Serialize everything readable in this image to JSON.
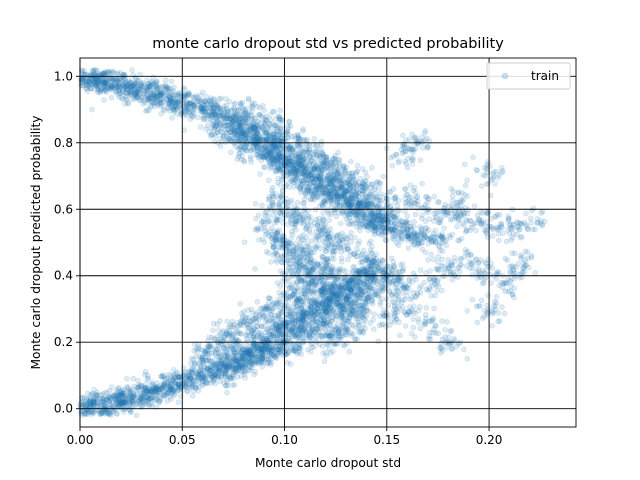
{
  "chart_data": {
    "type": "scatter",
    "title": "monte carlo dropout std vs predicted probability",
    "xlabel": "Monte carlo dropout std",
    "ylabel": "Monte carlo dropout predicted probability",
    "xlim": [
      0.0,
      0.2425
    ],
    "ylim": [
      -0.055,
      1.055
    ],
    "x_ticks": [
      0.0,
      0.05,
      0.1,
      0.15,
      0.2
    ],
    "x_tick_labels": [
      "0.00",
      "0.05",
      "0.10",
      "0.15",
      "0.20"
    ],
    "y_ticks": [
      0.0,
      0.2,
      0.4,
      0.6,
      0.8,
      1.0
    ],
    "y_tick_labels": [
      "0.0",
      "0.2",
      "0.4",
      "0.6",
      "0.8",
      "1.0"
    ],
    "grid": true,
    "legend_position": "top-right",
    "series": [
      {
        "name": "train",
        "color": "#1f77b4",
        "alpha": 0.15,
        "points": [
          [
            0.002,
            0.998
          ],
          [
            0.004,
            0.996
          ],
          [
            0.006,
            0.993
          ],
          [
            0.008,
            0.99
          ],
          [
            0.01,
            0.987
          ],
          [
            0.012,
            0.984
          ],
          [
            0.015,
            0.98
          ],
          [
            0.018,
            0.975
          ],
          [
            0.02,
            0.972
          ],
          [
            0.022,
            0.968
          ],
          [
            0.025,
            0.963
          ],
          [
            0.028,
            0.958
          ],
          [
            0.03,
            0.955
          ],
          [
            0.033,
            0.95
          ],
          [
            0.036,
            0.945
          ],
          [
            0.039,
            0.94
          ],
          [
            0.042,
            0.935
          ],
          [
            0.045,
            0.93
          ],
          [
            0.048,
            0.925
          ],
          [
            0.05,
            0.92
          ],
          [
            0.053,
            0.915
          ],
          [
            0.056,
            0.91
          ],
          [
            0.06,
            0.9
          ],
          [
            0.063,
            0.895
          ],
          [
            0.066,
            0.89
          ],
          [
            0.07,
            0.88
          ],
          [
            0.072,
            0.87
          ],
          [
            0.075,
            0.86
          ],
          [
            0.078,
            0.85
          ],
          [
            0.08,
            0.84
          ],
          [
            0.083,
            0.83
          ],
          [
            0.086,
            0.82
          ],
          [
            0.088,
            0.81
          ],
          [
            0.09,
            0.8
          ],
          [
            0.093,
            0.79
          ],
          [
            0.095,
            0.78
          ],
          [
            0.098,
            0.77
          ],
          [
            0.1,
            0.76
          ],
          [
            0.103,
            0.75
          ],
          [
            0.105,
            0.74
          ],
          [
            0.108,
            0.73
          ],
          [
            0.11,
            0.72
          ],
          [
            0.113,
            0.71
          ],
          [
            0.115,
            0.7
          ],
          [
            0.118,
            0.69
          ],
          [
            0.12,
            0.68
          ],
          [
            0.123,
            0.67
          ],
          [
            0.125,
            0.66
          ],
          [
            0.128,
            0.65
          ],
          [
            0.13,
            0.64
          ],
          [
            0.133,
            0.63
          ],
          [
            0.135,
            0.62
          ],
          [
            0.138,
            0.61
          ],
          [
            0.14,
            0.6
          ],
          [
            0.143,
            0.59
          ],
          [
            0.145,
            0.58
          ],
          [
            0.148,
            0.57
          ],
          [
            0.15,
            0.56
          ],
          [
            0.153,
            0.55
          ],
          [
            0.155,
            0.54
          ],
          [
            0.16,
            0.53
          ],
          [
            0.165,
            0.52
          ],
          [
            0.17,
            0.51
          ],
          [
            0.175,
            0.5
          ],
          [
            0.07,
            0.84
          ],
          [
            0.075,
            0.82
          ],
          [
            0.08,
            0.8
          ],
          [
            0.085,
            0.78
          ],
          [
            0.09,
            0.76
          ],
          [
            0.095,
            0.74
          ],
          [
            0.1,
            0.72
          ],
          [
            0.105,
            0.7
          ],
          [
            0.11,
            0.68
          ],
          [
            0.115,
            0.66
          ],
          [
            0.12,
            0.64
          ],
          [
            0.125,
            0.62
          ],
          [
            0.13,
            0.6
          ],
          [
            0.135,
            0.58
          ],
          [
            0.14,
            0.56
          ],
          [
            0.145,
            0.54
          ],
          [
            0.08,
            0.9
          ],
          [
            0.085,
            0.88
          ],
          [
            0.09,
            0.86
          ],
          [
            0.095,
            0.84
          ],
          [
            0.1,
            0.82
          ],
          [
            0.105,
            0.8
          ],
          [
            0.11,
            0.78
          ],
          [
            0.115,
            0.76
          ],
          [
            0.12,
            0.74
          ],
          [
            0.125,
            0.72
          ],
          [
            0.13,
            0.7
          ],
          [
            0.135,
            0.68
          ],
          [
            0.14,
            0.66
          ],
          [
            0.15,
            0.64
          ],
          [
            0.16,
            0.62
          ],
          [
            0.17,
            0.6
          ],
          [
            0.18,
            0.58
          ],
          [
            0.19,
            0.56
          ],
          [
            0.2,
            0.55
          ],
          [
            0.21,
            0.54
          ],
          [
            0.22,
            0.56
          ],
          [
            0.165,
            0.8
          ],
          [
            0.16,
            0.76
          ],
          [
            0.2,
            0.71
          ],
          [
            0.185,
            0.62
          ],
          [
            0.095,
            0.62
          ],
          [
            0.1,
            0.6
          ],
          [
            0.105,
            0.58
          ],
          [
            0.11,
            0.56
          ],
          [
            0.115,
            0.54
          ],
          [
            0.12,
            0.52
          ],
          [
            0.125,
            0.5
          ],
          [
            0.13,
            0.48
          ],
          [
            0.09,
            0.55
          ],
          [
            0.095,
            0.52
          ],
          [
            0.1,
            0.5
          ],
          [
            0.105,
            0.48
          ],
          [
            0.11,
            0.46
          ],
          [
            0.115,
            0.44
          ],
          [
            0.12,
            0.42
          ],
          [
            0.125,
            0.4
          ],
          [
            0.1,
            0.45
          ],
          [
            0.105,
            0.42
          ],
          [
            0.11,
            0.4
          ],
          [
            0.115,
            0.38
          ],
          [
            0.12,
            0.36
          ],
          [
            0.125,
            0.34
          ],
          [
            0.13,
            0.32
          ],
          [
            0.135,
            0.3
          ],
          [
            0.14,
            0.45
          ],
          [
            0.145,
            0.42
          ],
          [
            0.15,
            0.4
          ],
          [
            0.155,
            0.38
          ],
          [
            0.16,
            0.36
          ],
          [
            0.17,
            0.38
          ],
          [
            0.18,
            0.42
          ],
          [
            0.19,
            0.44
          ],
          [
            0.2,
            0.4
          ],
          [
            0.21,
            0.38
          ],
          [
            0.215,
            0.44
          ],
          [
            0.2,
            0.3
          ],
          [
            0.18,
            0.2
          ],
          [
            0.17,
            0.25
          ],
          [
            0.16,
            0.3
          ],
          [
            0.15,
            0.28
          ],
          [
            0.002,
            0.002
          ],
          [
            0.004,
            0.004
          ],
          [
            0.006,
            0.006
          ],
          [
            0.008,
            0.008
          ],
          [
            0.01,
            0.011
          ],
          [
            0.012,
            0.013
          ],
          [
            0.015,
            0.017
          ],
          [
            0.018,
            0.021
          ],
          [
            0.02,
            0.024
          ],
          [
            0.022,
            0.027
          ],
          [
            0.025,
            0.031
          ],
          [
            0.028,
            0.036
          ],
          [
            0.03,
            0.04
          ],
          [
            0.033,
            0.045
          ],
          [
            0.036,
            0.05
          ],
          [
            0.039,
            0.056
          ],
          [
            0.042,
            0.062
          ],
          [
            0.045,
            0.068
          ],
          [
            0.048,
            0.074
          ],
          [
            0.05,
            0.08
          ],
          [
            0.053,
            0.086
          ],
          [
            0.056,
            0.092
          ],
          [
            0.06,
            0.1
          ],
          [
            0.063,
            0.108
          ],
          [
            0.066,
            0.115
          ],
          [
            0.07,
            0.125
          ],
          [
            0.072,
            0.132
          ],
          [
            0.075,
            0.14
          ],
          [
            0.078,
            0.15
          ],
          [
            0.08,
            0.16
          ],
          [
            0.083,
            0.17
          ],
          [
            0.086,
            0.18
          ],
          [
            0.088,
            0.19
          ],
          [
            0.09,
            0.2
          ],
          [
            0.093,
            0.21
          ],
          [
            0.095,
            0.22
          ],
          [
            0.098,
            0.23
          ],
          [
            0.1,
            0.24
          ],
          [
            0.103,
            0.25
          ],
          [
            0.105,
            0.26
          ],
          [
            0.108,
            0.27
          ],
          [
            0.11,
            0.28
          ],
          [
            0.113,
            0.29
          ],
          [
            0.115,
            0.3
          ],
          [
            0.118,
            0.31
          ],
          [
            0.12,
            0.32
          ],
          [
            0.123,
            0.33
          ],
          [
            0.125,
            0.34
          ],
          [
            0.128,
            0.35
          ],
          [
            0.13,
            0.36
          ],
          [
            0.133,
            0.37
          ],
          [
            0.135,
            0.38
          ],
          [
            0.138,
            0.39
          ],
          [
            0.14,
            0.4
          ],
          [
            0.143,
            0.41
          ],
          [
            0.145,
            0.42
          ],
          [
            0.06,
            0.16
          ],
          [
            0.065,
            0.18
          ],
          [
            0.07,
            0.2
          ],
          [
            0.075,
            0.22
          ],
          [
            0.08,
            0.24
          ],
          [
            0.085,
            0.26
          ],
          [
            0.09,
            0.28
          ],
          [
            0.095,
            0.3
          ],
          [
            0.1,
            0.32
          ],
          [
            0.105,
            0.34
          ],
          [
            0.11,
            0.36
          ],
          [
            0.115,
            0.38
          ],
          [
            0.12,
            0.2
          ],
          [
            0.125,
            0.22
          ],
          [
            0.13,
            0.24
          ],
          [
            0.135,
            0.26
          ],
          [
            0.07,
            0.1
          ],
          [
            0.075,
            0.12
          ],
          [
            0.08,
            0.14
          ],
          [
            0.085,
            0.15
          ],
          [
            0.09,
            0.16
          ],
          [
            0.095,
            0.17
          ],
          [
            0.1,
            0.18
          ],
          [
            0.105,
            0.2
          ],
          [
            0.11,
            0.22
          ],
          [
            0.115,
            0.24
          ],
          [
            0.12,
            0.26
          ],
          [
            0.125,
            0.28
          ],
          [
            0.13,
            0.3
          ],
          [
            0.135,
            0.32
          ],
          [
            0.14,
            0.34
          ],
          [
            0.145,
            0.36
          ]
        ]
      }
    ]
  }
}
